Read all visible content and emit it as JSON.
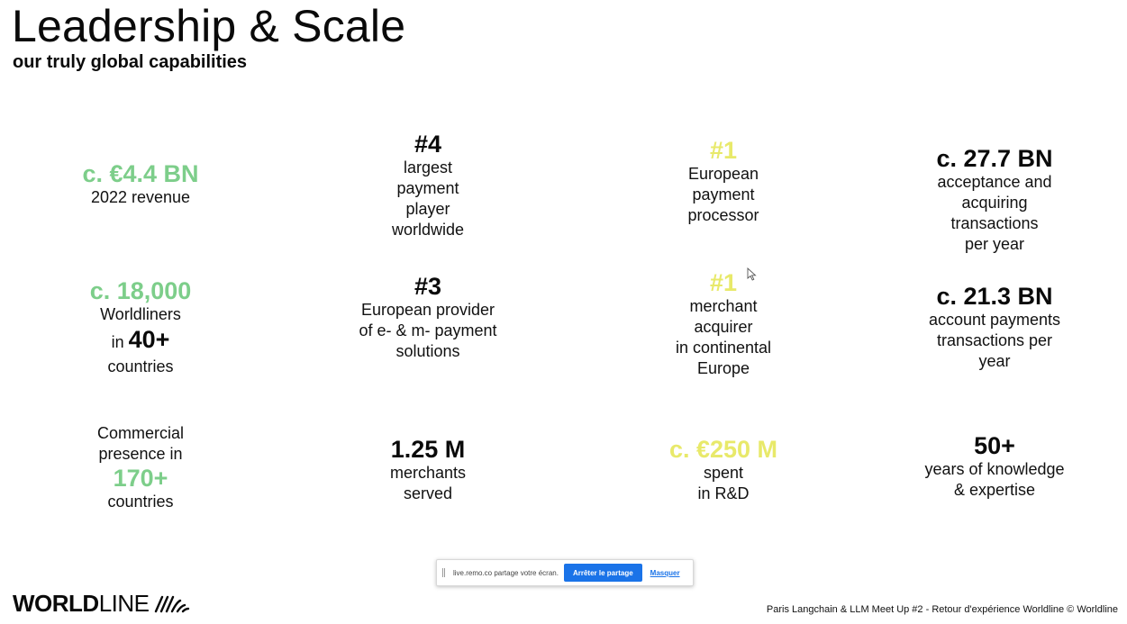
{
  "slide": {
    "title": "Leadership & Scale",
    "subtitle": "our truly global capabilities"
  },
  "stats": {
    "revenue": {
      "big": "c. €4.4 BN",
      "lines": [
        "2022 revenue"
      ]
    },
    "largest": {
      "big": "#4",
      "lines": [
        "largest",
        "payment",
        "player",
        "worldwide"
      ]
    },
    "processor": {
      "big": "#1",
      "lines": [
        "European",
        "payment",
        "processor"
      ]
    },
    "acceptance": {
      "big": "c. 27.7 BN",
      "lines": [
        "acceptance and",
        "acquiring",
        "transactions",
        "per year"
      ]
    },
    "worldliners": {
      "big": "c. 18,000",
      "line1": "Worldliners",
      "in": "in",
      "count": "40+",
      "line3": "countries"
    },
    "provider": {
      "big": "#3",
      "lines": [
        "European provider",
        "of e- & m- payment",
        "solutions"
      ]
    },
    "acquirer": {
      "big": "#1",
      "lines": [
        "merchant",
        "acquirer",
        "in continental",
        "Europe"
      ]
    },
    "account": {
      "big": "c. 21.3 BN",
      "lines": [
        "account payments",
        "transactions per",
        "year"
      ]
    },
    "presence": {
      "lines_before": [
        "Commercial",
        "presence in"
      ],
      "big": "170+",
      "lines_after": [
        "countries"
      ]
    },
    "merchants": {
      "big": "1.25 M",
      "lines": [
        "merchants",
        "served"
      ]
    },
    "rnd": {
      "big": "c. €250 M",
      "lines": [
        "spent",
        "in R&D"
      ]
    },
    "years": {
      "big": "50+",
      "lines": [
        "years of knowledge",
        "& expertise"
      ]
    }
  },
  "share_bar": {
    "text": "live.remo.co partage votre écran.",
    "stop_label": "Arrêter le partage",
    "hide_label": "Masquer"
  },
  "logo": {
    "bold": "WORLD",
    "regular": "LINE",
    "icon": "worldline-waves-icon"
  },
  "footer": "Paris Langchain & LLM Meet Up #2 - Retour d'expérience Worldline © Worldline",
  "colors": {
    "green": "#7dce8a",
    "yellow": "#e8e96a",
    "accent": "#1a73e8"
  }
}
